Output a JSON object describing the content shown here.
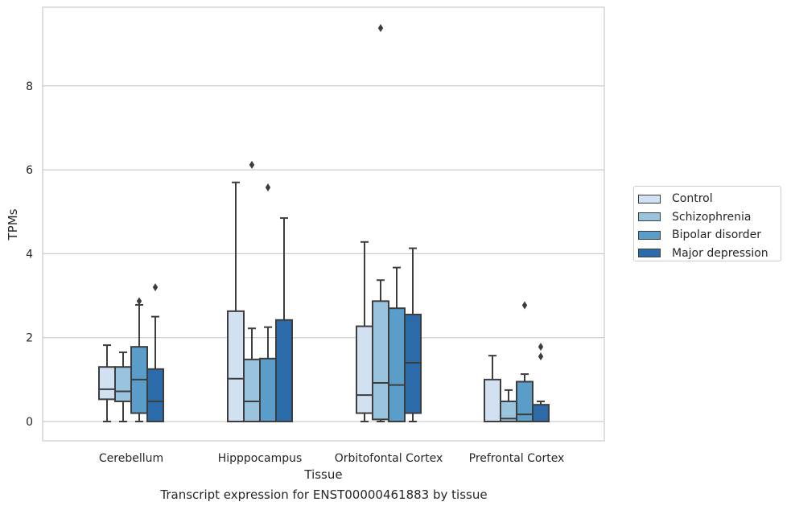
{
  "chart_data": {
    "type": "box",
    "caption": "Transcript expression for ENST00000461883 by tissue",
    "xlabel": "Tissue",
    "ylabel": "TPMs",
    "ylim": [
      -0.45,
      9.85
    ],
    "yticks": [
      0,
      2,
      4,
      6,
      8
    ],
    "grid": "horizontal",
    "legend_position": "right",
    "categories": [
      "Cerebellum",
      "Hipppocampus",
      "Orbitofontal Cortex",
      "Prefrontal Cortex"
    ],
    "series": [
      {
        "name": "Control",
        "color": "#d1e1f1",
        "boxes": [
          {
            "whisker_low": 0.0,
            "q1": 0.53,
            "median": 0.77,
            "q3": 1.3,
            "whisker_high": 1.82,
            "outliers": []
          },
          {
            "whisker_low": 0.0,
            "q1": 0.0,
            "median": 1.02,
            "q3": 2.63,
            "whisker_high": 5.7,
            "outliers": []
          },
          {
            "whisker_low": 0.0,
            "q1": 0.2,
            "median": 0.63,
            "q3": 2.27,
            "whisker_high": 4.28,
            "outliers": []
          },
          {
            "whisker_low": 0.0,
            "q1": 0.0,
            "median": 0.0,
            "q3": 1.0,
            "whisker_high": 1.57,
            "outliers": []
          }
        ]
      },
      {
        "name": "Schizophrenia",
        "color": "#9ac4de",
        "boxes": [
          {
            "whisker_low": 0.0,
            "q1": 0.48,
            "median": 0.72,
            "q3": 1.3,
            "whisker_high": 1.65,
            "outliers": []
          },
          {
            "whisker_low": 0.0,
            "q1": 0.0,
            "median": 0.48,
            "q3": 1.48,
            "whisker_high": 2.22,
            "outliers": [
              6.12
            ]
          },
          {
            "whisker_low": 0.0,
            "q1": 0.05,
            "median": 0.92,
            "q3": 2.87,
            "whisker_high": 3.37,
            "outliers": [
              9.38
            ]
          },
          {
            "whisker_low": 0.0,
            "q1": 0.0,
            "median": 0.07,
            "q3": 0.48,
            "whisker_high": 0.75,
            "outliers": []
          }
        ]
      },
      {
        "name": "Bipolar disorder",
        "color": "#5a9dc9",
        "boxes": [
          {
            "whisker_low": 0.0,
            "q1": 0.2,
            "median": 1.0,
            "q3": 1.78,
            "whisker_high": 2.78,
            "outliers": [
              2.87
            ]
          },
          {
            "whisker_low": 0.0,
            "q1": 0.0,
            "median": 0.0,
            "q3": 1.5,
            "whisker_high": 2.25,
            "outliers": [
              5.58
            ]
          },
          {
            "whisker_low": 0.0,
            "q1": 0.0,
            "median": 0.87,
            "q3": 2.7,
            "whisker_high": 3.67,
            "outliers": []
          },
          {
            "whisker_low": 0.0,
            "q1": 0.0,
            "median": 0.17,
            "q3": 0.95,
            "whisker_high": 1.13,
            "outliers": [
              2.77
            ]
          }
        ]
      },
      {
        "name": "Major depression",
        "color": "#2b6ba9",
        "boxes": [
          {
            "whisker_low": 0.0,
            "q1": 0.0,
            "median": 0.48,
            "q3": 1.25,
            "whisker_high": 2.5,
            "outliers": [
              3.2
            ]
          },
          {
            "whisker_low": 0.0,
            "q1": 0.0,
            "median": 0.0,
            "q3": 2.42,
            "whisker_high": 4.85,
            "outliers": []
          },
          {
            "whisker_low": 0.0,
            "q1": 0.2,
            "median": 1.4,
            "q3": 2.55,
            "whisker_high": 4.13,
            "outliers": []
          },
          {
            "whisker_low": 0.0,
            "q1": 0.0,
            "median": 0.0,
            "q3": 0.4,
            "whisker_high": 0.48,
            "outliers": [
              1.55,
              1.78
            ]
          }
        ]
      }
    ]
  }
}
